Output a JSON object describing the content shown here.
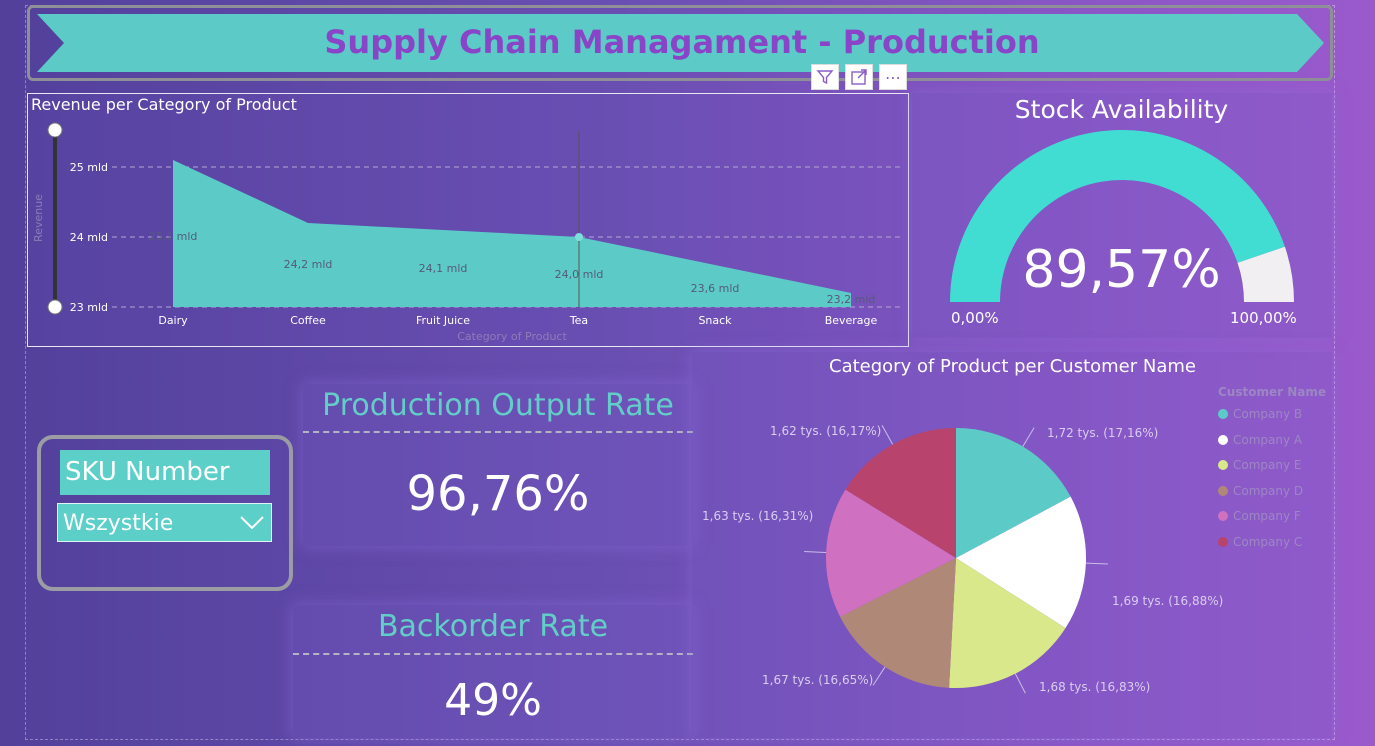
{
  "title": "Supply Chain Managament - Production",
  "toolbar": {
    "filter_icon": "filter-icon",
    "focus_icon": "focus-mode-icon",
    "more_icon": "more-options-icon",
    "more_label": "⋯"
  },
  "area_chart": {
    "title": "Revenue per Category of Product",
    "xlabel": "Category of Product",
    "ylabel": "Revenue",
    "ticks": [
      "25 mld",
      "24 mld",
      "23 mld"
    ],
    "data_labels": [
      "25,1 mld",
      "24,2 mld",
      "24,1 mld",
      "24,0 mld",
      "23,6 mld",
      "23,2 mld"
    ]
  },
  "gauge": {
    "title": "Stock Availability",
    "value_label": "89,57%",
    "min_label": "0,00%",
    "max_label": "100,00%",
    "fill_color": "#41ddd3",
    "rest_color": "#f1eff1"
  },
  "kpi_output": {
    "title": "Production Output Rate",
    "value": "96,76%"
  },
  "kpi_backorder": {
    "title": "Backorder Rate",
    "value": "49%"
  },
  "slicer": {
    "label": "SKU Number",
    "selected": "Wszystkie"
  },
  "pie": {
    "title": "Category of Product per Customer Name",
    "legend_title": "Customer Name",
    "legend": [
      {
        "name": "Company B",
        "color": "#5ccbc8"
      },
      {
        "name": "Company A",
        "color": "#ffffff"
      },
      {
        "name": "Company E",
        "color": "#d8e88a"
      },
      {
        "name": "Company D",
        "color": "#b08878"
      },
      {
        "name": "Company F",
        "color": "#d070c0"
      },
      {
        "name": "Company C",
        "color": "#b8436c"
      }
    ],
    "slice_labels": [
      "1,72 tys. (17,16%)",
      "1,69 tys. (16,88%)",
      "1,68 tys. (16,83%)",
      "1,67 tys. (16,65%)",
      "1,63 tys. (16,31%)",
      "1,62 tys. (16,17%)"
    ]
  },
  "chart_data": [
    {
      "type": "area",
      "title": "Revenue per Category of Product",
      "xlabel": "Category of Product",
      "ylabel": "Revenue",
      "categories": [
        "Dairy",
        "Coffee",
        "Fruit Juice",
        "Tea",
        "Snack",
        "Beverage"
      ],
      "values": [
        25.1,
        24.2,
        24.1,
        24.0,
        23.6,
        23.2
      ],
      "unit": "mld",
      "ylim": [
        23,
        25
      ],
      "grid": true,
      "color": "#5ccbc8"
    },
    {
      "type": "pie",
      "title": "Category of Product per Customer Name",
      "categories": [
        "Company B",
        "Company A",
        "Company E",
        "Company D",
        "Company F",
        "Company C"
      ],
      "values": [
        1.72,
        1.69,
        1.68,
        1.67,
        1.63,
        1.62
      ],
      "percent": [
        17.16,
        16.88,
        16.83,
        16.65,
        16.31,
        16.17
      ],
      "unit": "tys.",
      "legend": "right"
    },
    {
      "type": "gauge",
      "title": "Stock Availability",
      "value": 89.57,
      "min": 0,
      "max": 100
    }
  ]
}
